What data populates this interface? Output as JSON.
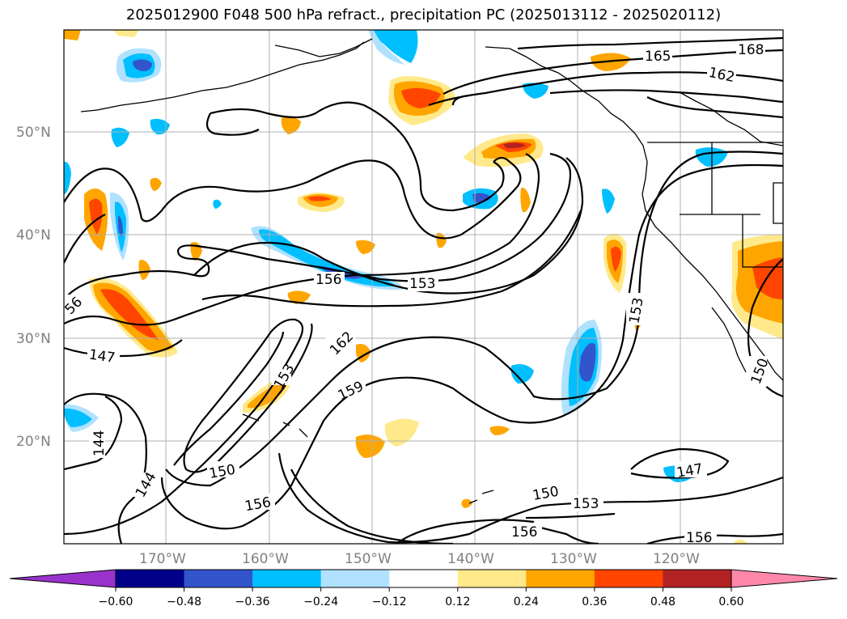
{
  "title": "2025012900 F048 500 hPa refract., precipitation PC (2025013112 - 2025020112)",
  "latitude_labels": [
    "50°N",
    "40°N",
    "30°N",
    "20°N"
  ],
  "longitude_labels": [
    "170°W",
    "160°W",
    "150°W",
    "140°W",
    "130°W",
    "120°W"
  ],
  "contour_labels": [
    "168",
    "165",
    "162",
    "156",
    "153",
    "56",
    "147",
    "162",
    "159",
    "153",
    "144",
    "150",
    "144",
    "156",
    "150",
    "153",
    "147",
    "156",
    "153",
    "150",
    "156"
  ],
  "colorbar": {
    "ticks": [
      "−0.60",
      "−0.48",
      "−0.36",
      "−0.24",
      "−0.12",
      "0.12",
      "0.24",
      "0.36",
      "0.48",
      "0.60"
    ],
    "colors": [
      "#9933cc",
      "#00008b",
      "#3355cc",
      "#00bfff",
      "#b0e2ff",
      "#ffffff",
      "#ffe98a",
      "#ffa500",
      "#ff4500",
      "#b22222",
      "#ff88aa"
    ]
  },
  "colors": {
    "grid": "#b0b0b0",
    "contour": "#000000",
    "axis_label": "#808080",
    "coast": "#000000"
  }
}
